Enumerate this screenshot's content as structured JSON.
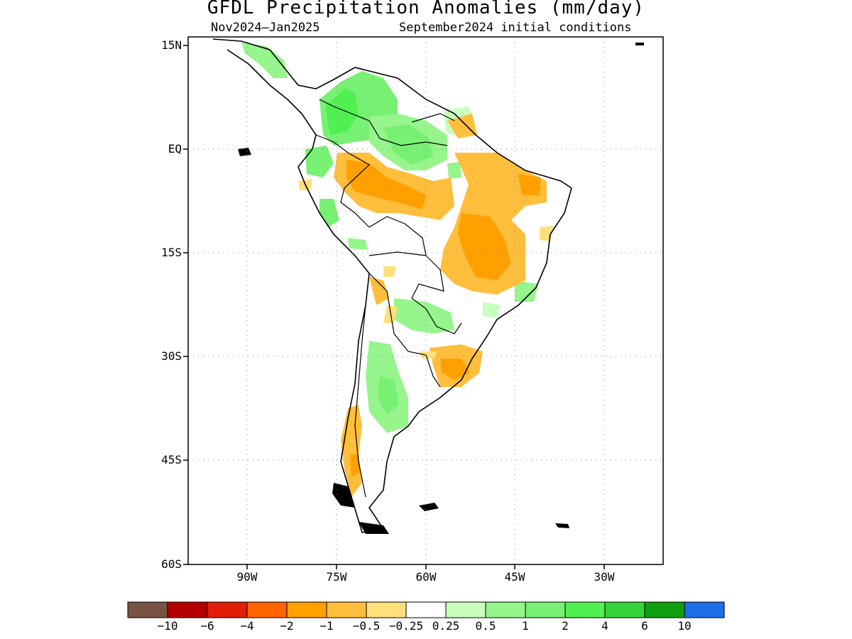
{
  "title": "GFDL Precipitation Anomalies (mm/day)",
  "subtitle_left": "Nov2024—Jan2025",
  "subtitle_right": "September2024 initial conditions",
  "lat_labels": [
    "15N",
    "EQ",
    "15S",
    "30S",
    "45S",
    "60S"
  ],
  "lon_labels": [
    "90W",
    "75W",
    "60W",
    "45W",
    "30W"
  ],
  "colorbar": {
    "colors": [
      "#7a5244",
      "#b40000",
      "#e01e0a",
      "#ff6400",
      "#ffa000",
      "#ffbe3c",
      "#ffe07a",
      "#ffffff",
      "#c8ffbe",
      "#96f58c",
      "#78f073",
      "#50f050",
      "#37d23c",
      "#0fa00f",
      "#1e6ee6"
    ],
    "labels": [
      "−10",
      "−6",
      "−4",
      "−2",
      "−1",
      "−0.5",
      "−0.25",
      "0.25",
      "0.5",
      "1",
      "2",
      "4",
      "6",
      "10"
    ]
  }
}
